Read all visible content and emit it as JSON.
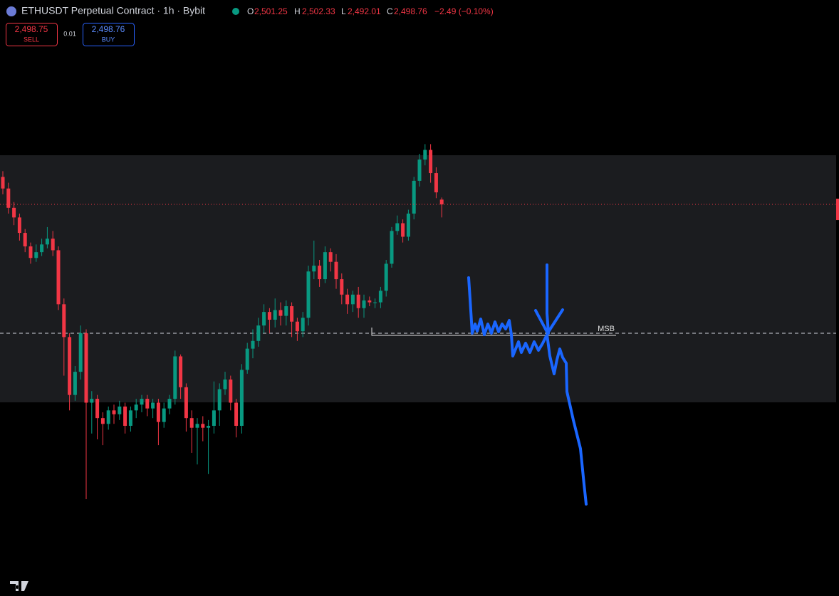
{
  "header": {
    "symbol": "ETHUSDT Perpetual Contract · 1h · Bybit",
    "ohlc": [
      {
        "key": "O",
        "value": "2,501.25"
      },
      {
        "key": "H",
        "value": "2,502.33"
      },
      {
        "key": "L",
        "value": "2,492.01"
      },
      {
        "key": "C",
        "value": "2,498.76"
      }
    ],
    "change": "−2.49 (−0.10%)"
  },
  "order_panel": {
    "sell_price": "2,498.75",
    "sell_label": "SELL",
    "spread": "0.01",
    "buy_price": "2,498.76",
    "buy_label": "BUY"
  },
  "annotation": "MSB",
  "chart_data": {
    "type": "candlestick",
    "ylim": [
      2295.8,
      2604.7
    ],
    "up_color": "#089981",
    "down_color": "#f23645",
    "series": {
      "open": [
        2513,
        2507,
        2497,
        2492,
        2484,
        2477,
        2471,
        2474,
        2478,
        2481,
        2475,
        2447,
        2430,
        2400,
        2412,
        2432,
        2396,
        2398,
        2388,
        2385,
        2392,
        2390,
        2394,
        2384,
        2392,
        2395,
        2398,
        2393,
        2396,
        2386,
        2393,
        2398,
        2420,
        2404,
        2388,
        2383,
        2385,
        2383,
        2384,
        2392,
        2403,
        2408,
        2396,
        2384,
        2413,
        2424,
        2428,
        2436,
        2443,
        2439,
        2444,
        2441,
        2446,
        2438,
        2433,
        2440,
        2464,
        2467,
        2460,
        2474,
        2469,
        2460,
        2452,
        2447,
        2452,
        2445,
        2449,
        2448,
        2448,
        2454,
        2468,
        2485,
        2489,
        2482,
        2494,
        2511,
        2522,
        2527,
        2515,
        2501.25
      ],
      "high": [
        2516,
        2510,
        2500,
        2494,
        2486,
        2479,
        2478,
        2481,
        2487,
        2485,
        2477,
        2450,
        2432,
        2415,
        2436,
        2434,
        2402,
        2400,
        2391,
        2394,
        2395,
        2397,
        2396,
        2394,
        2398,
        2400,
        2400,
        2398,
        2398,
        2396,
        2400,
        2423,
        2421,
        2406,
        2392,
        2388,
        2389,
        2387,
        2407,
        2406,
        2412,
        2410,
        2398,
        2416,
        2427,
        2434,
        2440,
        2447,
        2445,
        2450,
        2448,
        2449,
        2448,
        2440,
        2443,
        2467,
        2480,
        2470,
        2477,
        2476,
        2473,
        2463,
        2455,
        2454,
        2456,
        2452,
        2451,
        2450,
        2456,
        2470,
        2487,
        2493,
        2491,
        2496,
        2513,
        2525,
        2530,
        2530,
        2518,
        2502.33
      ],
      "low": [
        2504,
        2494,
        2488,
        2480,
        2474,
        2468,
        2469,
        2472,
        2476,
        2472,
        2444,
        2410,
        2392,
        2397,
        2408,
        2346,
        2380,
        2377,
        2374,
        2382,
        2385,
        2387,
        2380,
        2381,
        2388,
        2391,
        2389,
        2388,
        2374,
        2383,
        2390,
        2395,
        2398,
        2381,
        2370,
        2364,
        2376,
        2359,
        2380,
        2384,
        2400,
        2392,
        2378,
        2380,
        2411,
        2419,
        2425,
        2432,
        2432,
        2435,
        2436,
        2436,
        2430,
        2428,
        2430,
        2436,
        2460,
        2456,
        2458,
        2464,
        2455,
        2447,
        2442,
        2443,
        2440,
        2440,
        2446,
        2445,
        2445,
        2451,
        2466,
        2483,
        2479,
        2480,
        2491,
        2508,
        2519,
        2510,
        2502,
        2492.01
      ],
      "close": [
        2507,
        2497,
        2492,
        2484,
        2477,
        2471,
        2474,
        2478,
        2481,
        2475,
        2447,
        2430,
        2400,
        2412,
        2432,
        2396,
        2398,
        2388,
        2385,
        2392,
        2390,
        2394,
        2384,
        2392,
        2395,
        2398,
        2393,
        2396,
        2386,
        2393,
        2398,
        2420,
        2404,
        2388,
        2383,
        2385,
        2383,
        2384,
        2392,
        2403,
        2408,
        2396,
        2384,
        2413,
        2424,
        2428,
        2436,
        2443,
        2439,
        2444,
        2441,
        2446,
        2438,
        2433,
        2440,
        2464,
        2467,
        2460,
        2474,
        2469,
        2460,
        2452,
        2447,
        2452,
        2445,
        2449,
        2448,
        2448,
        2454,
        2468,
        2485,
        2489,
        2482,
        2494,
        2511,
        2522,
        2527,
        2515,
        2505,
        2498.76
      ]
    }
  }
}
